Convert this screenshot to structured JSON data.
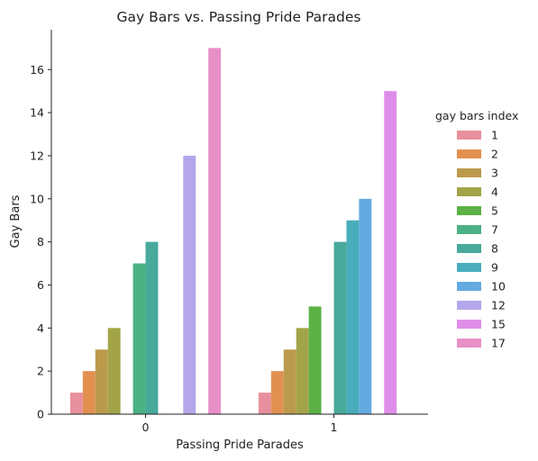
{
  "chart_data": {
    "type": "bar",
    "title": "Gay Bars vs. Passing Pride Parades",
    "xlabel": "Passing Pride Parades",
    "ylabel": "Gay Bars",
    "categories": [
      "0",
      "1"
    ],
    "ylim": [
      0,
      17.85
    ],
    "yticks": [
      0,
      2,
      4,
      6,
      8,
      10,
      12,
      14,
      16
    ],
    "grid": false,
    "legend_title": "gay bars index",
    "legend_placement": "right",
    "series": [
      {
        "name": "1",
        "color": "#e8909d",
        "values": [
          1,
          1
        ]
      },
      {
        "name": "2",
        "color": "#e19050",
        "values": [
          2,
          2
        ]
      },
      {
        "name": "3",
        "color": "#bb9a4c",
        "values": [
          3,
          3
        ]
      },
      {
        "name": "4",
        "color": "#a3a448",
        "values": [
          4,
          4
        ]
      },
      {
        "name": "5",
        "color": "#5cb147",
        "values": [
          null,
          5
        ]
      },
      {
        "name": "7",
        "color": "#4cb185",
        "values": [
          7,
          null
        ]
      },
      {
        "name": "8",
        "color": "#48aa9b",
        "values": [
          8,
          8
        ]
      },
      {
        "name": "9",
        "color": "#4aadbc",
        "values": [
          null,
          9
        ]
      },
      {
        "name": "10",
        "color": "#63aae1",
        "values": [
          null,
          10
        ]
      },
      {
        "name": "12",
        "color": "#b4a6ea",
        "values": [
          12,
          null
        ]
      },
      {
        "name": "15",
        "color": "#de8ee8",
        "values": [
          null,
          15
        ]
      },
      {
        "name": "17",
        "color": "#e88fc7",
        "values": [
          17,
          null
        ]
      }
    ]
  }
}
